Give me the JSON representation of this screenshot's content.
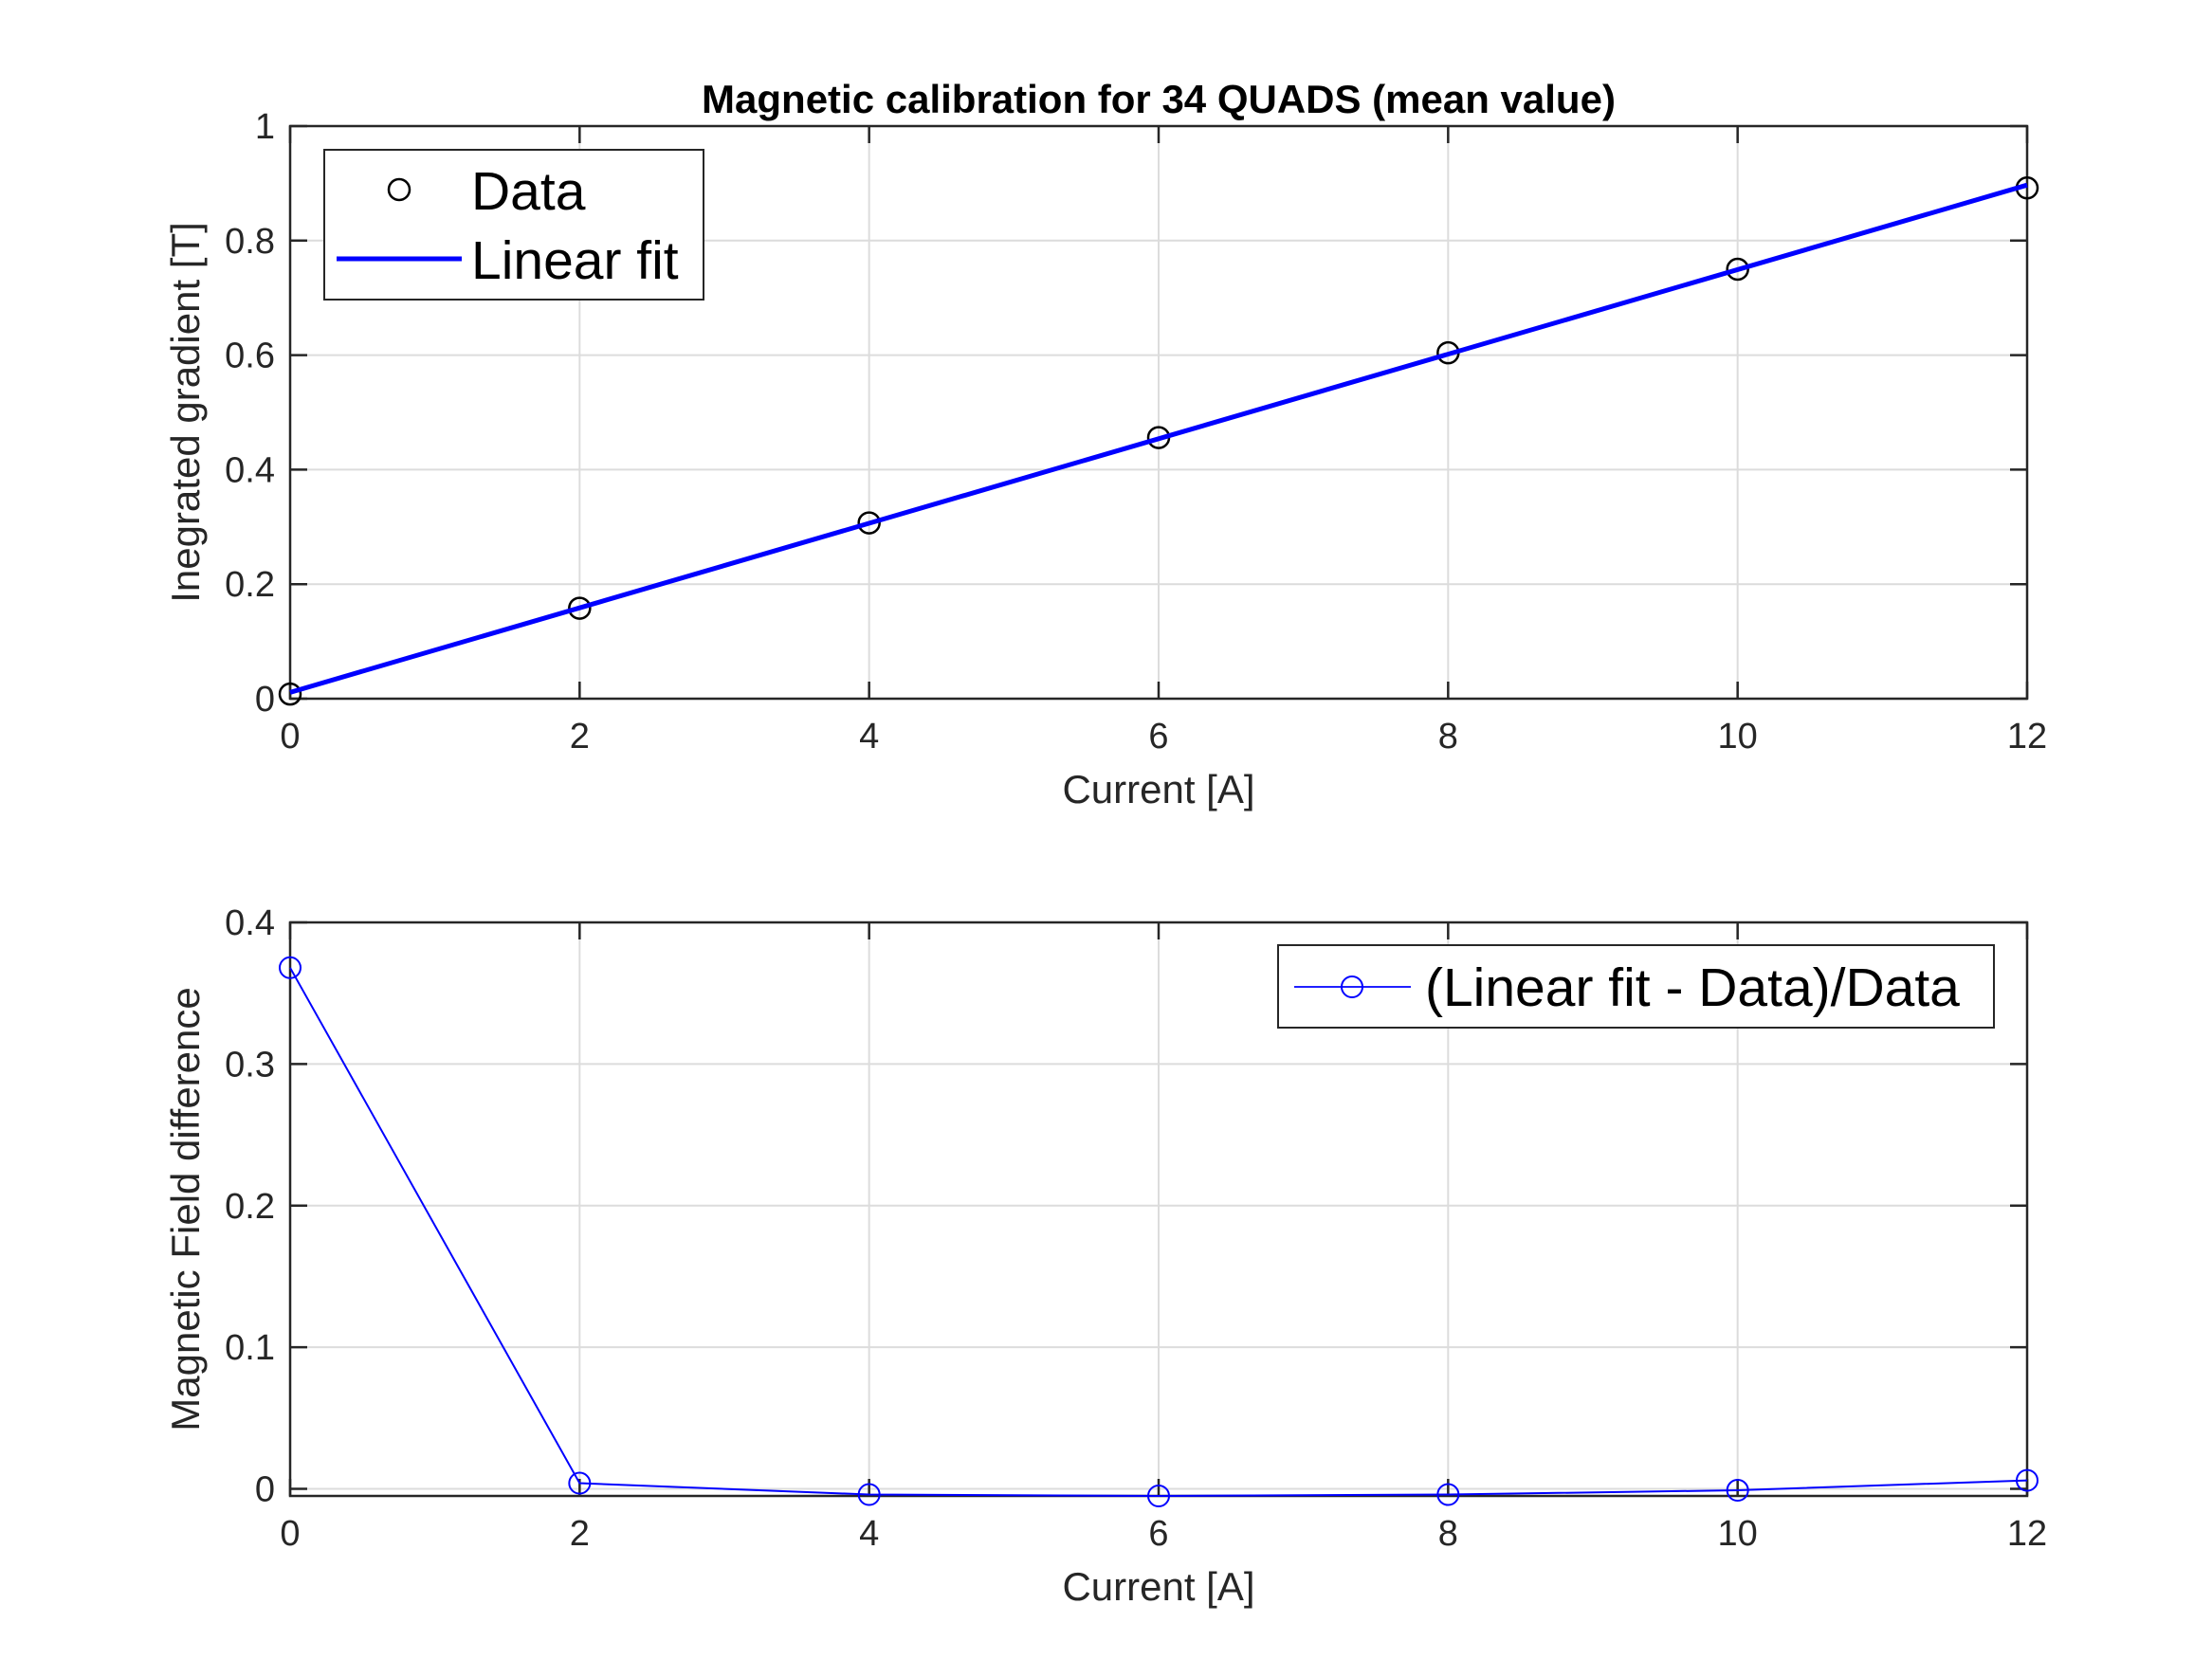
{
  "chart_data": [
    {
      "type": "scatter",
      "title": "Magnetic calibration for 34 QUADS (mean value)",
      "xlabel": "Current [A]",
      "ylabel": "Inegrated gradient [T]",
      "xlim": [
        0,
        12
      ],
      "ylim": [
        0,
        1
      ],
      "xticks": [
        0,
        2,
        4,
        6,
        8,
        10,
        12
      ],
      "yticks": [
        0,
        0.2,
        0.4,
        0.6,
        0.8,
        1
      ],
      "grid": true,
      "legend_position": "top-left",
      "x": [
        0,
        2,
        4,
        6,
        8,
        10,
        12
      ],
      "series": [
        {
          "name": "Data",
          "style": "markers",
          "marker": "circle",
          "color": "#000000",
          "values": [
            0.008,
            0.158,
            0.307,
            0.456,
            0.604,
            0.75,
            0.892
          ]
        },
        {
          "name": "Linear fit",
          "style": "line",
          "color": "#0000ff",
          "x": [
            0,
            12
          ],
          "values": [
            0.011,
            0.897
          ]
        }
      ]
    },
    {
      "type": "line",
      "title": "",
      "xlabel": "Current [A]",
      "ylabel": "Magnetic Field difference",
      "xlim": [
        0,
        12
      ],
      "ylim": [
        -0.005,
        0.4
      ],
      "xticks": [
        0,
        2,
        4,
        6,
        8,
        10,
        12
      ],
      "yticks": [
        0,
        0.1,
        0.2,
        0.3,
        0.4
      ],
      "grid": true,
      "legend_position": "top-right",
      "x": [
        0,
        2,
        4,
        6,
        8,
        10,
        12
      ],
      "series": [
        {
          "name": "(Linear fit - Data)/Data",
          "style": "line-markers",
          "marker": "circle",
          "color": "#0000ff",
          "values": [
            0.368,
            0.004,
            -0.004,
            -0.005,
            -0.004,
            -0.001,
            0.006
          ]
        }
      ]
    }
  ]
}
